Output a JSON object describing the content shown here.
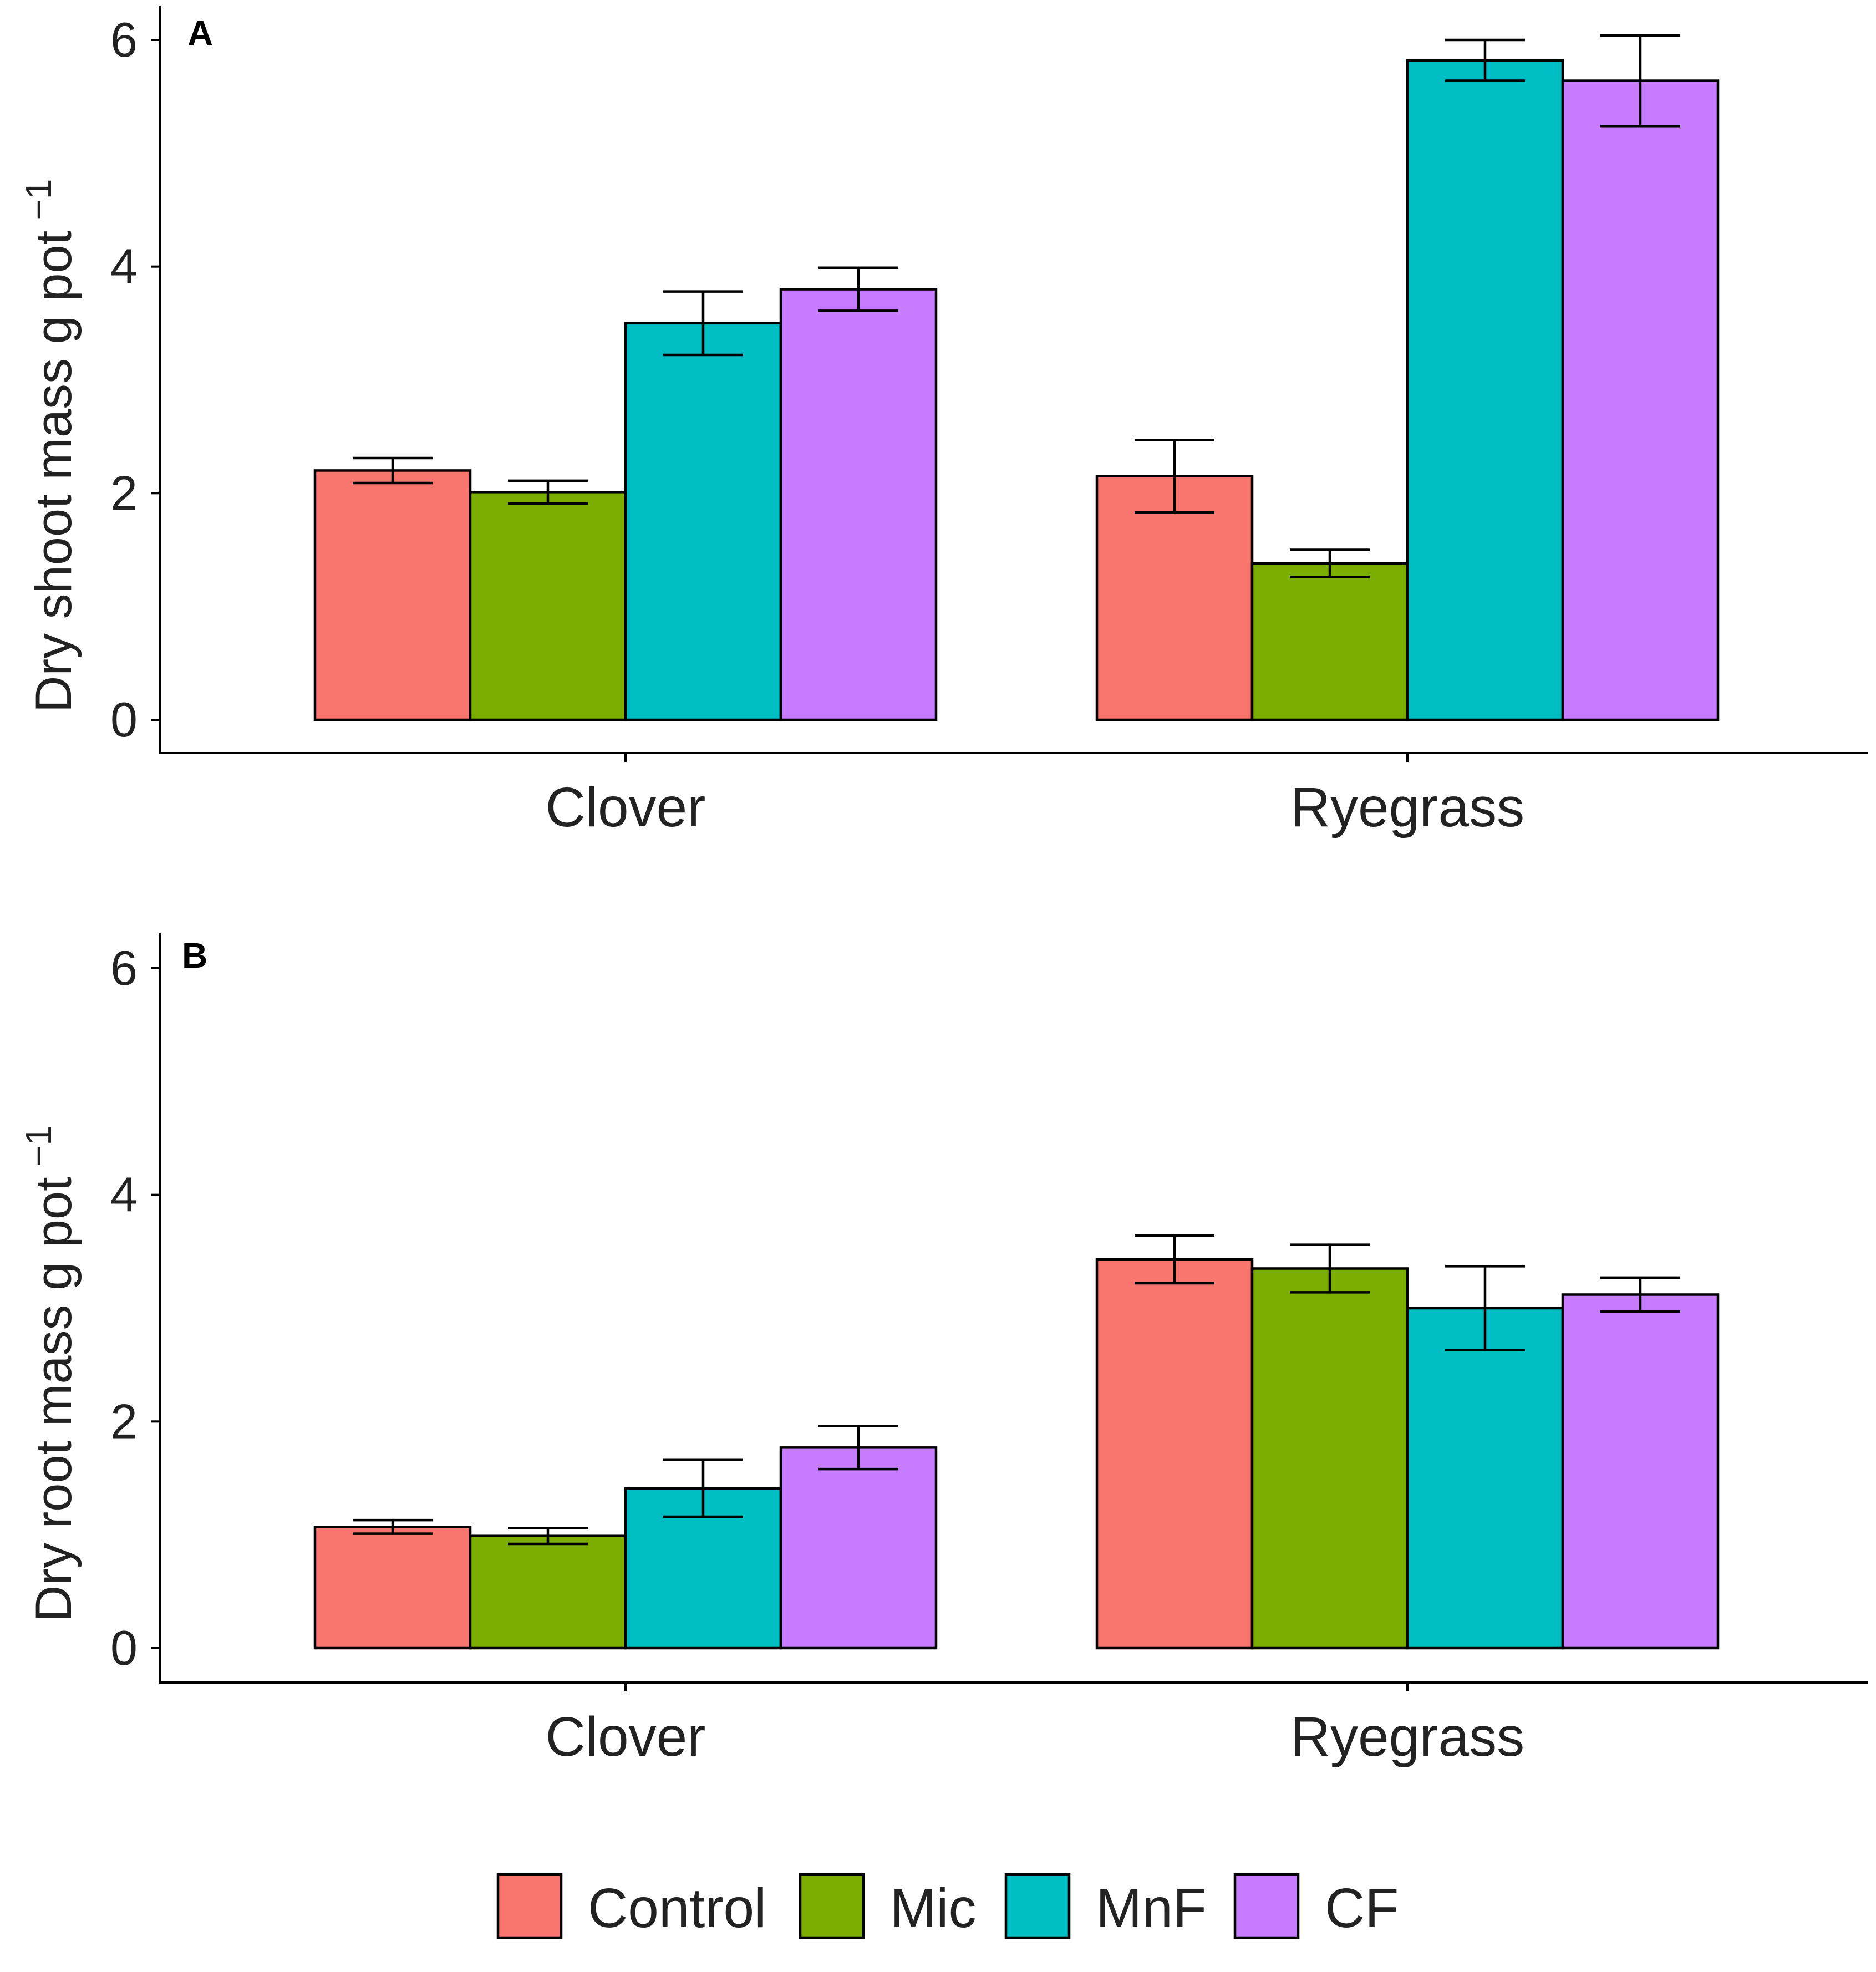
{
  "colors": {
    "Control": "#F8766D",
    "Mic": "#7CAE00",
    "MnF": "#00BFC4",
    "CF": "#C77CFF"
  },
  "legend": {
    "entries": [
      "Control",
      "Mic",
      "MnF",
      "CF"
    ]
  },
  "chart_data": [
    {
      "type": "bar",
      "panel_label": "A",
      "title": "",
      "xlabel": "",
      "ylabel": "Dry shoot mass g pot",
      "ylabel_superscript": "−1",
      "ylim": [
        0,
        6.3
      ],
      "yticks": [
        0,
        2,
        4,
        6
      ],
      "ytick_labels": [
        "0",
        "2",
        "4",
        "6"
      ],
      "categories": [
        "Clover",
        "Ryegrass"
      ],
      "series": [
        {
          "name": "Control",
          "values": [
            2.2,
            2.15
          ],
          "error": [
            0.11,
            0.32
          ]
        },
        {
          "name": "Mic",
          "values": [
            2.01,
            1.38
          ],
          "error": [
            0.1,
            0.12
          ]
        },
        {
          "name": "MnF",
          "values": [
            3.5,
            5.82
          ],
          "error": [
            0.28,
            0.18
          ]
        },
        {
          "name": "CF",
          "values": [
            3.8,
            5.64
          ],
          "error": [
            0.19,
            0.4
          ]
        }
      ]
    },
    {
      "type": "bar",
      "panel_label": "B",
      "title": "",
      "xlabel": "",
      "ylabel": "Dry root mass g pot",
      "ylabel_superscript": "−1",
      "ylim": [
        0,
        6.3
      ],
      "yticks": [
        0,
        2,
        4,
        6
      ],
      "ytick_labels": [
        "0",
        "2",
        "4",
        "6"
      ],
      "categories": [
        "Clover",
        "Ryegrass"
      ],
      "series": [
        {
          "name": "Control",
          "values": [
            1.07,
            3.43
          ],
          "error": [
            0.06,
            0.21
          ]
        },
        {
          "name": "Mic",
          "values": [
            0.99,
            3.35
          ],
          "error": [
            0.07,
            0.21
          ]
        },
        {
          "name": "MnF",
          "values": [
            1.41,
            3.0
          ],
          "error": [
            0.25,
            0.37
          ]
        },
        {
          "name": "CF",
          "values": [
            1.77,
            3.12
          ],
          "error": [
            0.19,
            0.15
          ]
        }
      ]
    }
  ]
}
